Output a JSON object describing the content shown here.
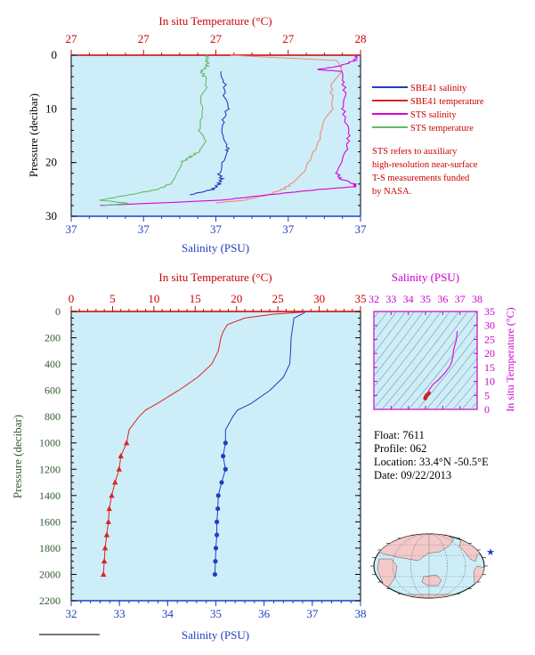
{
  "top_panel": {
    "top_axis_title": "In situ Temperature (°C)",
    "top_ticks": [
      "27",
      "27",
      "27",
      "27",
      "28"
    ],
    "bottom_axis_title": "Salinity (PSU)",
    "bottom_ticks": [
      "37",
      "37",
      "37",
      "37",
      "37"
    ],
    "left_axis_title": "Pressure (decibar)",
    "left_ticks": [
      "0",
      "10",
      "20",
      "30"
    ],
    "legend": [
      {
        "label": "SBE41 salinity",
        "color": "#1f3fbf"
      },
      {
        "label": "SBE41 temperature",
        "color": "#dd2222"
      },
      {
        "label": "STS salinity",
        "color": "#dd00dd"
      },
      {
        "label": "STS temperature",
        "color": "#66bb66"
      }
    ],
    "note": [
      "STS refers to auxiliary",
      "high-resolution near-surface",
      "T-S measurements funded",
      "by NASA."
    ]
  },
  "main_panel": {
    "top_axis_title": "In situ Temperature (°C)",
    "top_ticks": [
      "0",
      "5",
      "10",
      "15",
      "20",
      "25",
      "30",
      "35"
    ],
    "bottom_axis_title": "Salinity (PSU)",
    "bottom_ticks": [
      "32",
      "33",
      "34",
      "35",
      "36",
      "37",
      "38"
    ],
    "left_axis_title": "Pressure (decibar)",
    "left_ticks": [
      "0",
      "200",
      "400",
      "600",
      "800",
      "1000",
      "1200",
      "1400",
      "1600",
      "1800",
      "2000",
      "2200"
    ]
  },
  "ts_panel": {
    "top_axis_title": "Salinity (PSU)",
    "top_ticks": [
      "32",
      "33",
      "34",
      "35",
      "36",
      "37",
      "38"
    ],
    "right_axis_title": "In situ Temperature (°C)",
    "right_ticks": [
      "0",
      "5",
      "10",
      "15",
      "20",
      "25",
      "30",
      "35"
    ]
  },
  "info": {
    "float": "Float:  7611",
    "profile": "Profile:  062",
    "location": "Location:  33.4°N  -50.5°E",
    "date": "Date:  09/22/2013"
  },
  "colors": {
    "plot_bg": "#cdeef8",
    "temperature": "#dd2222",
    "salinity": "#1f3fbf",
    "sts_salinity": "#dd00dd",
    "sts_temperature": "#66bb66",
    "salmon": "#f08a7a",
    "axis_blue": "#1f3fbf",
    "axis_magenta": "#cc00cc",
    "axis_green": "#2e5e2e",
    "land": "#f3c9c9",
    "ocean": "#cdeef8"
  },
  "chart_data": [
    {
      "type": "line",
      "title": "",
      "xlabel": "Salinity (PSU)",
      "x2label": "In situ Temperature (°C)",
      "ylabel": "Pressure (decibar)",
      "ylim": [
        0,
        30
      ],
      "y_inverted": true,
      "series": [
        {
          "name": "SBE41 salinity",
          "x_axis": "salinity",
          "points": [
            [
              3,
              0.52
            ],
            [
              5,
              0.53
            ],
            [
              8,
              0.53
            ],
            [
              10,
              0.54
            ],
            [
              13,
              0.52
            ],
            [
              15,
              0.53
            ],
            [
              17,
              0.54
            ],
            [
              18,
              0.54
            ],
            [
              20,
              0.52
            ],
            [
              22,
              0.51
            ],
            [
              23,
              0.52
            ],
            [
              24,
              0.51
            ],
            [
              25,
              0.49
            ],
            [
              26,
              0.41
            ]
          ]
        },
        {
          "name": "SBE41 temperature",
          "x_axis": "temperature",
          "points": [
            [
              0,
              0.55
            ],
            [
              1,
              0.92
            ],
            [
              3,
              0.93
            ],
            [
              5,
              0.9
            ],
            [
              8,
              0.9
            ],
            [
              10,
              0.91
            ],
            [
              12,
              0.88
            ],
            [
              14,
              0.87
            ],
            [
              16,
              0.86
            ],
            [
              18,
              0.84
            ],
            [
              20,
              0.82
            ],
            [
              22,
              0.8
            ],
            [
              24,
              0.76
            ],
            [
              25,
              0.73
            ],
            [
              26,
              0.68
            ],
            [
              27,
              0.6
            ],
            [
              27.5,
              0.5
            ]
          ]
        },
        {
          "name": "STS salinity",
          "x_axis": "salinity",
          "points": [
            [
              0,
              0.99
            ],
            [
              1,
              0.98
            ],
            [
              2,
              0.93
            ],
            [
              2.7,
              0.85
            ],
            [
              3,
              0.93
            ],
            [
              5,
              0.94
            ],
            [
              8,
              0.95
            ],
            [
              10,
              0.94
            ],
            [
              13,
              0.95
            ],
            [
              15,
              0.96
            ],
            [
              18,
              0.95
            ],
            [
              20,
              0.94
            ],
            [
              22,
              0.92
            ],
            [
              23,
              0.93
            ],
            [
              24,
              0.98
            ],
            [
              24.5,
              0.98
            ],
            [
              25,
              0.86
            ],
            [
              26,
              0.68
            ],
            [
              27,
              0.52
            ],
            [
              28,
              0.1
            ]
          ]
        },
        {
          "name": "STS temperature",
          "x_axis": "temperature",
          "points": [
            [
              0,
              0.47
            ],
            [
              1,
              0.47
            ],
            [
              2,
              0.47
            ],
            [
              3,
              0.45
            ],
            [
              4,
              0.46
            ],
            [
              6,
              0.47
            ],
            [
              8,
              0.45
            ],
            [
              10,
              0.46
            ],
            [
              12,
              0.45
            ],
            [
              14,
              0.44
            ],
            [
              16,
              0.46
            ],
            [
              18,
              0.44
            ],
            [
              19,
              0.41
            ],
            [
              20,
              0.38
            ],
            [
              22,
              0.36
            ],
            [
              24,
              0.34
            ],
            [
              25,
              0.3
            ],
            [
              26,
              0.2
            ],
            [
              27,
              0.1
            ],
            [
              27.6,
              0.2
            ],
            [
              28,
              0.11
            ]
          ]
        }
      ]
    },
    {
      "type": "line",
      "title": "",
      "xlabel": "Salinity (PSU)",
      "x2label": "In situ Temperature (°C)",
      "ylabel": "Pressure (decibar)",
      "xlim": [
        32,
        38
      ],
      "x2lim": [
        0,
        35
      ],
      "ylim": [
        0,
        2200
      ],
      "y_inverted": true,
      "series": [
        {
          "x_axis": "temperature",
          "pressure": [
            5,
            20,
            50,
            100,
            150,
            200,
            300,
            400,
            500,
            600,
            700,
            750,
            800,
            900,
            1000,
            1100,
            1200,
            1300,
            1400,
            1500,
            1600,
            1700,
            1800,
            1900,
            2000
          ],
          "values": [
            28.0,
            24.5,
            21.0,
            18.9,
            18.4,
            18.1,
            17.8,
            17.0,
            15.3,
            13.0,
            10.4,
            9.0,
            8.2,
            7.0,
            6.7,
            6.0,
            5.8,
            5.3,
            4.9,
            4.6,
            4.5,
            4.3,
            4.1,
            4.0,
            3.9
          ]
        },
        {
          "x_axis": "salinity",
          "pressure": [
            5,
            20,
            50,
            100,
            150,
            200,
            300,
            400,
            500,
            600,
            700,
            750,
            800,
            900,
            1000,
            1100,
            1200,
            1300,
            1400,
            1500,
            1600,
            1700,
            1800,
            1900,
            2000
          ],
          "values": [
            36.85,
            36.78,
            36.62,
            36.6,
            36.58,
            36.56,
            36.55,
            36.53,
            36.4,
            36.12,
            35.73,
            35.45,
            35.35,
            35.2,
            35.2,
            35.15,
            35.2,
            35.12,
            35.05,
            35.04,
            35.02,
            35.02,
            35.0,
            34.99,
            34.98
          ]
        }
      ]
    },
    {
      "type": "scatter",
      "title": "",
      "xlabel": "Salinity (PSU)",
      "ylabel": "In situ Temperature (°C)",
      "xlim": [
        32,
        38
      ],
      "ylim": [
        0,
        35
      ],
      "series": [
        {
          "points": [
            [
              34.98,
              3.9
            ],
            [
              35.0,
              4.1
            ],
            [
              35.02,
              4.5
            ],
            [
              35.05,
              4.9
            ],
            [
              35.12,
              5.3
            ],
            [
              35.2,
              5.8
            ],
            [
              35.15,
              6.0
            ],
            [
              35.2,
              6.7
            ],
            [
              35.2,
              7.0
            ],
            [
              35.35,
              8.2
            ],
            [
              35.45,
              9.0
            ],
            [
              35.73,
              10.4
            ],
            [
              36.12,
              13.0
            ],
            [
              36.4,
              15.3
            ],
            [
              36.53,
              17.0
            ],
            [
              36.56,
              18.1
            ],
            [
              36.6,
              18.9
            ],
            [
              36.62,
              21.0
            ],
            [
              36.78,
              24.5
            ],
            [
              36.85,
              28.0
            ]
          ]
        }
      ]
    }
  ]
}
